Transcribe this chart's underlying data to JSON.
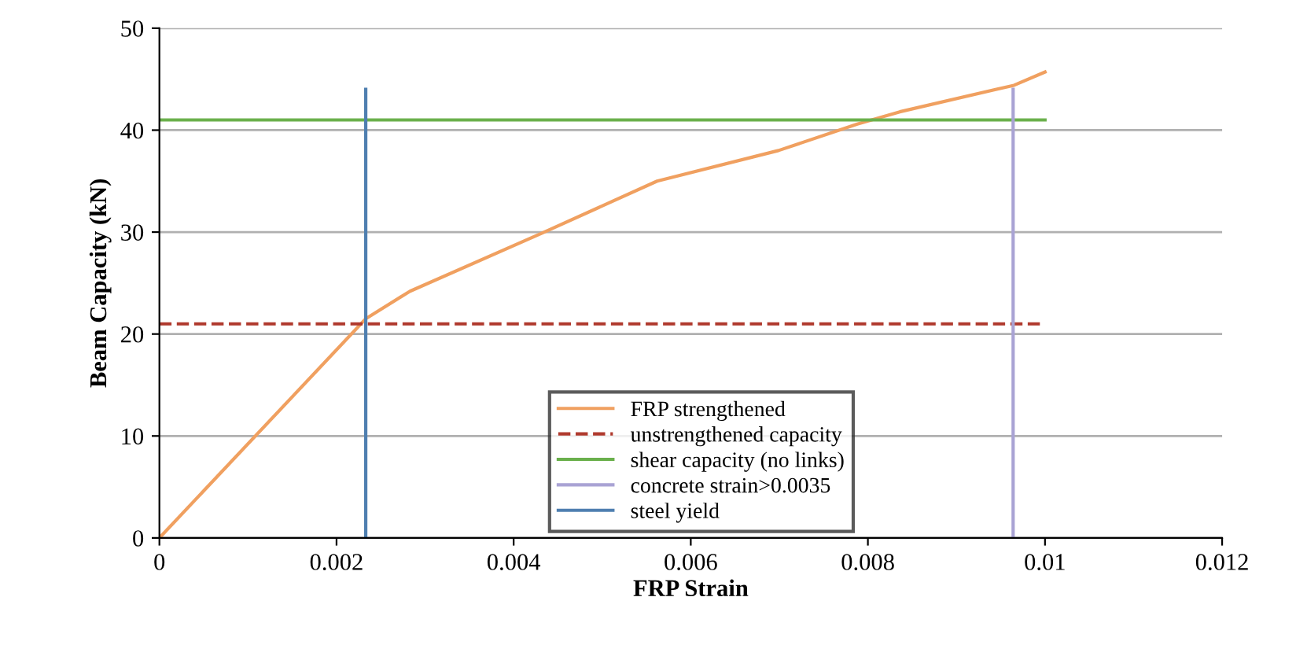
{
  "chart_data": {
    "type": "line",
    "xlabel": "FRP Strain",
    "ylabel": "Beam Capacity (kN)",
    "xlim": [
      0,
      0.012
    ],
    "xticks": [
      0,
      0.002,
      0.004,
      0.006,
      0.008,
      0.01,
      0.012
    ],
    "ylim": [
      0,
      50
    ],
    "yticks": [
      0,
      10,
      20,
      30,
      40,
      50
    ],
    "grid": "y",
    "legend": "bottom",
    "marker": "none",
    "series": [
      {
        "name": "FRP strengthened",
        "color": "#f0a060",
        "x": [
          0,
          0.00233,
          0.00283,
          0.00432,
          0.00562,
          0.00699,
          0.00788,
          0.00836,
          0.00965,
          0.01
        ],
        "values": [
          0,
          21.5,
          24.2,
          29.9,
          35.0,
          38.0,
          40.6,
          41.8,
          44.4,
          45.7
        ]
      },
      {
        "name": "unstrengthened capacity",
        "color": "#b03a2e",
        "line_style": "dashed",
        "x": [
          0,
          0.01
        ],
        "values": [
          21,
          21
        ]
      },
      {
        "name": "shear capacity (no links)",
        "color": "#6ab04c",
        "x": [
          0,
          0.01
        ],
        "values": [
          41,
          41
        ]
      },
      {
        "name": "concrete strain>0.0035",
        "color": "#a9a3d4",
        "x": [
          0.00964,
          0.00964
        ],
        "values": [
          0,
          44
        ]
      },
      {
        "name": "steel yield",
        "color": "#4f7fb0",
        "x": [
          0.00233,
          0.00233
        ],
        "values": [
          0,
          44
        ]
      }
    ]
  }
}
